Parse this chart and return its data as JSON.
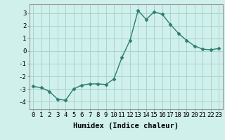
{
  "x": [
    0,
    1,
    2,
    3,
    4,
    5,
    6,
    7,
    8,
    9,
    10,
    11,
    12,
    13,
    14,
    15,
    16,
    17,
    18,
    19,
    20,
    21,
    22,
    23
  ],
  "y": [
    -2.8,
    -2.9,
    -3.2,
    -3.8,
    -3.9,
    -3.0,
    -2.7,
    -2.6,
    -2.6,
    -2.65,
    -2.2,
    -0.5,
    0.85,
    3.2,
    2.5,
    3.1,
    2.9,
    2.1,
    1.4,
    0.85,
    0.4,
    0.15,
    0.1,
    0.2
  ],
  "line_color": "#2e7d6e",
  "marker": "D",
  "markersize": 2.5,
  "linewidth": 1.0,
  "bg_color": "#cff0eb",
  "grid_color": "#aad4ce",
  "xlabel": "Humidex (Indice chaleur)",
  "xlabel_fontsize": 7.5,
  "yticks": [
    -4,
    -3,
    -2,
    -1,
    0,
    1,
    2,
    3
  ],
  "xtick_labels": [
    "0",
    "1",
    "2",
    "3",
    "4",
    "5",
    "6",
    "7",
    "8",
    "9",
    "10",
    "11",
    "12",
    "13",
    "14",
    "15",
    "16",
    "17",
    "18",
    "19",
    "20",
    "21",
    "22",
    "23"
  ],
  "ylim": [
    -4.6,
    3.7
  ],
  "xlim": [
    -0.5,
    23.5
  ],
  "tick_fontsize": 6.5
}
